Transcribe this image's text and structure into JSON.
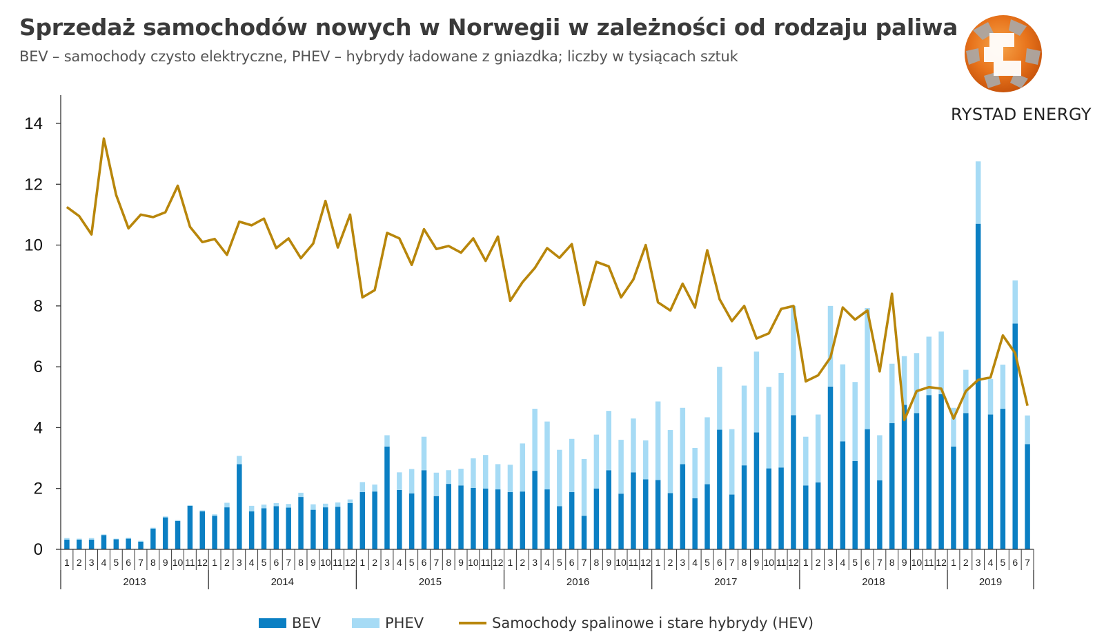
{
  "chart_data": {
    "type": "bar",
    "stacked": true,
    "title": "Sprzedaż samochodów nowych w Norwegii w zależności od rodzaju paliwa",
    "subtitle": "BEV – samochody czysto elektryczne, PHEV – hybrydy ładowane z gniazdka; liczby w tysiącach sztuk",
    "ylim": [
      0,
      14
    ],
    "yticks": [
      0,
      2,
      4,
      6,
      8,
      10,
      12,
      14
    ],
    "grid": false,
    "legend_position": "bottom",
    "years": [
      {
        "label": "2013",
        "months": 12
      },
      {
        "label": "2014",
        "months": 12
      },
      {
        "label": "2015",
        "months": 12
      },
      {
        "label": "2016",
        "months": 12
      },
      {
        "label": "2017",
        "months": 12
      },
      {
        "label": "2018",
        "months": 12
      },
      {
        "label": "2019",
        "months": 7
      }
    ],
    "categories": [
      "1",
      "2",
      "3",
      "4",
      "5",
      "6",
      "7",
      "8",
      "9",
      "10",
      "11",
      "12",
      "1",
      "2",
      "3",
      "4",
      "5",
      "6",
      "7",
      "8",
      "9",
      "10",
      "11",
      "12",
      "1",
      "2",
      "3",
      "4",
      "5",
      "6",
      "7",
      "8",
      "9",
      "10",
      "11",
      "12",
      "1",
      "2",
      "3",
      "4",
      "5",
      "6",
      "7",
      "8",
      "9",
      "10",
      "11",
      "12",
      "1",
      "2",
      "3",
      "4",
      "5",
      "6",
      "7",
      "8",
      "9",
      "10",
      "11",
      "12",
      "1",
      "2",
      "3",
      "4",
      "5",
      "6",
      "7",
      "8",
      "9",
      "10",
      "11",
      "12",
      "1",
      "2",
      "3",
      "4",
      "5",
      "6",
      "7"
    ],
    "series": [
      {
        "name": "BEV",
        "kind": "bar",
        "color": "#0b7fc3",
        "values": [
          0.32,
          0.32,
          0.32,
          0.47,
          0.33,
          0.35,
          0.25,
          0.68,
          1.05,
          0.93,
          1.43,
          1.25,
          1.1,
          1.38,
          2.8,
          1.25,
          1.35,
          1.42,
          1.37,
          1.72,
          1.3,
          1.38,
          1.4,
          1.52,
          1.88,
          1.9,
          3.38,
          1.95,
          1.84,
          2.6,
          1.75,
          2.15,
          2.1,
          2.02,
          2.0,
          1.97,
          1.88,
          1.9,
          2.58,
          1.97,
          1.42,
          1.88,
          1.1,
          2.0,
          2.6,
          1.83,
          2.53,
          2.3,
          2.28,
          1.85,
          2.8,
          1.68,
          2.14,
          3.93,
          1.8,
          2.76,
          3.84,
          2.66,
          2.69,
          4.41,
          2.1,
          2.2,
          5.35,
          3.55,
          2.9,
          3.95,
          2.27,
          4.15,
          4.75,
          4.48,
          5.07,
          5.1,
          3.38,
          4.48,
          10.7,
          4.43,
          4.62,
          7.42,
          3.46
        ]
      },
      {
        "name": "PHEV",
        "kind": "bar",
        "color": "#a6dbf5",
        "values": [
          0.05,
          0.03,
          0.05,
          0.02,
          0.02,
          0.03,
          0.03,
          0.03,
          0.03,
          0.03,
          0.02,
          0.03,
          0.05,
          0.15,
          0.27,
          0.18,
          0.12,
          0.1,
          0.12,
          0.14,
          0.18,
          0.12,
          0.14,
          0.12,
          0.33,
          0.23,
          0.37,
          0.58,
          0.8,
          1.1,
          0.77,
          0.45,
          0.55,
          0.97,
          1.1,
          0.83,
          0.9,
          1.58,
          2.04,
          2.23,
          1.85,
          1.75,
          1.87,
          1.77,
          1.95,
          1.77,
          1.77,
          1.28,
          2.58,
          2.07,
          1.85,
          1.65,
          2.2,
          2.07,
          2.15,
          2.62,
          2.66,
          2.68,
          3.11,
          3.59,
          1.6,
          2.23,
          2.65,
          2.53,
          2.6,
          3.98,
          1.48,
          1.95,
          1.6,
          1.97,
          1.92,
          2.06,
          1.27,
          1.42,
          2.05,
          1.17,
          1.45,
          1.42,
          0.94
        ]
      },
      {
        "name": "Samochody spalinowe i stare hybrydy (HEV)",
        "kind": "line",
        "color": "#b8860b",
        "values": [
          11.25,
          10.95,
          10.35,
          13.5,
          11.65,
          10.55,
          11.0,
          10.92,
          11.08,
          11.95,
          10.6,
          10.1,
          10.2,
          9.68,
          10.77,
          10.65,
          10.87,
          9.9,
          10.22,
          9.57,
          10.05,
          11.45,
          9.92,
          11.0,
          8.28,
          8.52,
          10.4,
          10.22,
          9.35,
          10.52,
          9.87,
          9.97,
          9.75,
          10.22,
          9.48,
          10.28,
          8.17,
          8.78,
          9.25,
          9.9,
          9.58,
          10.03,
          8.03,
          9.45,
          9.3,
          8.28,
          8.87,
          10.0,
          8.12,
          7.85,
          8.73,
          7.95,
          9.83,
          8.22,
          7.5,
          8.0,
          6.93,
          7.1,
          7.9,
          8.0,
          5.52,
          5.72,
          6.3,
          7.95,
          7.55,
          7.85,
          5.85,
          8.4,
          4.25,
          5.2,
          5.33,
          5.28,
          4.3,
          5.2,
          5.57,
          5.65,
          7.03,
          6.45,
          4.72
        ]
      }
    ]
  },
  "logo": {
    "text": "RYSTAD ENERGY"
  }
}
